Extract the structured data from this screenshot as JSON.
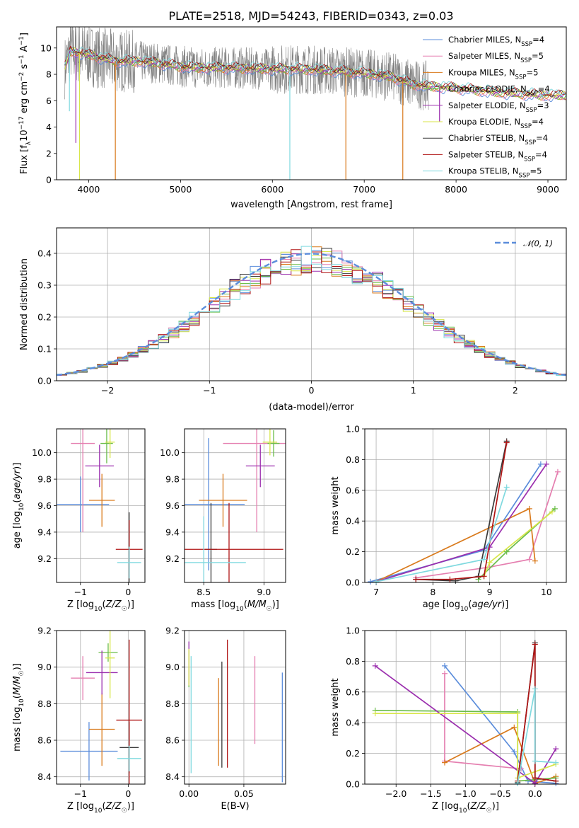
{
  "figure_title": "PLATE=2518, MJD=54243, FIBERID=0343, z=0.03",
  "colors": {
    "Chabrier MILES": "#5b8ddb",
    "Salpeter MILES": "#e57fb0",
    "Kroupa MILES": "#d97a1c",
    "Chabrier ELODIE": "#6bbd4a",
    "Salpeter ELODIE": "#9b2fae",
    "Kroupa ELODIE": "#d8e64a",
    "Chabrier STELIB": "#3a3a3a",
    "Salpeter STELIB": "#b01515",
    "Kroupa STELIB": "#7fd9df",
    "data": "#808080"
  },
  "chart_data": [
    {
      "id": "spectrum",
      "type": "line",
      "xlabel": "wavelength [Angstrom, rest frame]",
      "ylabel": "Flux [f_λ10^{-17} erg cm^{-2} s^{-1} A^{-1}]",
      "ylabel_parts": {
        "main": "Flux [f",
        "sub1": "λ",
        "mid": "10",
        "sup1": "−17",
        "mid2": " erg cm",
        "sup2": "−2",
        "mid3": " s",
        "sup3": "−1",
        "mid4": " A",
        "sup4": "−1",
        "end": "]"
      },
      "xlim": [
        3650,
        9200
      ],
      "ylim": [
        0,
        11.6
      ],
      "xticks": [
        4000,
        5000,
        6000,
        7000,
        8000,
        9000
      ],
      "yticks": [
        0,
        2,
        4,
        6,
        8,
        10
      ],
      "grid": false,
      "legend_position": "top-right",
      "data_range": [
        3740,
        7700
      ],
      "continuum": [
        [
          3740,
          8.5
        ],
        [
          3800,
          9.8
        ],
        [
          3900,
          9.6
        ],
        [
          4000,
          9.5
        ],
        [
          4100,
          9.3
        ],
        [
          4300,
          9.0
        ],
        [
          4500,
          9.0
        ],
        [
          4700,
          8.9
        ],
        [
          5000,
          8.6
        ],
        [
          5200,
          8.5
        ],
        [
          5500,
          8.5
        ],
        [
          5800,
          8.45
        ],
        [
          6000,
          8.4
        ],
        [
          6300,
          8.4
        ],
        [
          6600,
          8.3
        ],
        [
          7000,
          8.1
        ],
        [
          7300,
          7.8
        ],
        [
          7500,
          7.3
        ],
        [
          7700,
          7.1
        ],
        [
          8000,
          6.95
        ],
        [
          8500,
          6.6
        ],
        [
          9000,
          6.4
        ]
      ],
      "legend": [
        {
          "name": "Chabrier MILES",
          "label": "Chabrier MILES, N",
          "sub": "SSP",
          "n": "=4"
        },
        {
          "name": "Salpeter MILES",
          "label": "Salpeter MILES, N",
          "sub": "SSP",
          "n": "=5"
        },
        {
          "name": "Kroupa MILES",
          "label": "Kroupa MILES, N",
          "sub": "SSP",
          "n": "=5"
        },
        {
          "name": "Chabrier ELODIE",
          "label": "Chabrier ELODIE, N",
          "sub": "SSP",
          "n": "=4"
        },
        {
          "name": "Salpeter ELODIE",
          "label": "Salpeter ELODIE, N",
          "sub": "SSP",
          "n": "=3"
        },
        {
          "name": "Kroupa ELODIE",
          "label": "Kroupa ELODIE, N",
          "sub": "SSP",
          "n": "=4"
        },
        {
          "name": "Chabrier STELIB",
          "label": "Chabrier STELIB, N",
          "sub": "SSP",
          "n": "=4"
        },
        {
          "name": "Salpeter STELIB",
          "label": "Salpeter STELIB, N",
          "sub": "SSP",
          "n": "=4"
        },
        {
          "name": "Kroupa STELIB",
          "label": "Kroupa STELIB, N",
          "sub": "SSP",
          "n": "=5"
        }
      ],
      "dips": [
        {
          "name": "Kroupa MILES",
          "x": 4290,
          "y": 0
        },
        {
          "name": "Kroupa MILES",
          "x": 6800,
          "y": 0
        },
        {
          "name": "Kroupa MILES",
          "x": 7420,
          "y": 0
        },
        {
          "name": "Kroupa ELODIE",
          "x": 3900,
          "y": 0
        },
        {
          "name": "Kroupa STELIB",
          "x": 6190,
          "y": 0
        },
        {
          "name": "Salpeter ELODIE",
          "x": 3860,
          "y": 2.8
        },
        {
          "name": "Kroupa STELIB",
          "x": 3790,
          "y": 5.2
        },
        {
          "name": "Salpeter ELODIE",
          "x": 7820,
          "y": 4.4
        }
      ]
    },
    {
      "id": "residuals",
      "type": "histogram",
      "xlabel": "(data-model)/error",
      "ylabel": "Normed distribution",
      "xlim": [
        -2.5,
        2.5
      ],
      "ylim": [
        0,
        0.48
      ],
      "xticks": [
        -2,
        -1,
        0,
        1,
        2
      ],
      "yticks": [
        0.0,
        0.1,
        0.2,
        0.3,
        0.4
      ],
      "grid": true,
      "bin_width": 0.1,
      "reference": {
        "name": "N(0,1)",
        "label": "𝒩(0, 1)",
        "color": "#5b8ddb",
        "style": "dashed",
        "mean": 0,
        "sigma": 1
      },
      "legend_position": "top-right"
    },
    {
      "id": "age-vs-Z",
      "type": "scatter",
      "xlabel": "Z [log10(Z/Z☉)]",
      "ylabel": "age [log10(age/yr)]",
      "xlim": [
        -1.5,
        0.35
      ],
      "ylim": [
        9.02,
        10.18
      ],
      "xticks": [
        -1,
        0
      ],
      "yticks": [
        9.2,
        9.4,
        9.6,
        9.8,
        10.0
      ],
      "grid": true,
      "points": [
        {
          "name": "Chabrier MILES",
          "x": -1.0,
          "xerr": 0.6,
          "y": 9.61,
          "yerr": 0.21
        },
        {
          "name": "Salpeter MILES",
          "x": -0.95,
          "xerr": 0.25,
          "y": 10.07,
          "yerr": 0.67
        },
        {
          "name": "Kroupa MILES",
          "x": -0.55,
          "xerr": 0.27,
          "y": 9.64,
          "yerr": 0.2
        },
        {
          "name": "Chabrier ELODIE",
          "x": -0.45,
          "xerr": 0.13,
          "y": 10.07,
          "yerr": 0.15
        },
        {
          "name": "Salpeter ELODIE",
          "x": -0.6,
          "xerr": 0.3,
          "y": 9.9,
          "yerr": 0.16
        },
        {
          "name": "Kroupa ELODIE",
          "x": -0.38,
          "xerr": 0.1,
          "y": 10.08,
          "yerr": 0.12
        },
        {
          "name": "Chabrier STELIB",
          "x": 0.02,
          "xerr": 0.01,
          "y": 9.27,
          "yerr": 0.28
        },
        {
          "name": "Salpeter STELIB",
          "x": 0.02,
          "xerr": 0.28,
          "y": 9.27,
          "yerr": 0.22
        },
        {
          "name": "Kroupa STELIB",
          "x": 0.02,
          "xerr": 0.25,
          "y": 9.17,
          "yerr": 0.12
        }
      ]
    },
    {
      "id": "age-vs-mass",
      "type": "scatter",
      "xlabel": "mass [log10(M/M☉)]",
      "ylabel": "",
      "xlim": [
        8.34,
        9.18
      ],
      "ylim": [
        9.02,
        10.18
      ],
      "xticks": [
        8.5,
        9.0
      ],
      "yticks": [
        9.2,
        9.4,
        9.6,
        9.8,
        10.0
      ],
      "grid": true,
      "points": [
        {
          "name": "Chabrier MILES",
          "x": 8.54,
          "xerr": 0.3,
          "y": 9.61,
          "yerr": 0.5
        },
        {
          "name": "Salpeter MILES",
          "x": 8.94,
          "xerr": 0.28,
          "y": 10.07,
          "yerr": 0.67
        },
        {
          "name": "Kroupa MILES",
          "x": 8.66,
          "xerr": 0.2,
          "y": 9.64,
          "yerr": 0.2
        },
        {
          "name": "Chabrier ELODIE",
          "x": 9.08,
          "xerr": 0.05,
          "y": 10.07,
          "yerr": 0.1
        },
        {
          "name": "Salpeter ELODIE",
          "x": 8.97,
          "xerr": 0.12,
          "y": 9.9,
          "yerr": 0.16
        },
        {
          "name": "Kroupa ELODIE",
          "x": 9.05,
          "xerr": 0.06,
          "y": 10.08,
          "yerr": 0.1
        },
        {
          "name": "Chabrier STELIB",
          "x": 8.56,
          "xerr": 0.05,
          "y": 9.27,
          "yerr": 0.35
        },
        {
          "name": "Salpeter STELIB",
          "x": 8.71,
          "xerr": 0.45,
          "y": 9.27,
          "yerr": 0.35
        },
        {
          "name": "Kroupa STELIB",
          "x": 8.5,
          "xerr": 0.35,
          "y": 9.17,
          "yerr": 0.35
        }
      ]
    },
    {
      "id": "massweight-vs-age",
      "type": "line",
      "xlabel": "age [log10(age/yr)]",
      "ylabel": "mass weight",
      "xlim": [
        6.8,
        10.35
      ],
      "ylim": [
        0,
        1
      ],
      "xticks": [
        7,
        8,
        9,
        10
      ],
      "yticks": [
        0.0,
        0.2,
        0.4,
        0.6,
        0.8,
        1.0
      ],
      "grid": true,
      "series": [
        {
          "name": "Chabrier MILES",
          "x": [
            6.9,
            8.9,
            9.9
          ],
          "y": [
            0.005,
            0.21,
            0.77
          ]
        },
        {
          "name": "Salpeter MILES",
          "x": [
            7.7,
            9.0,
            9.7,
            10.2
          ],
          "y": [
            0.03,
            0.1,
            0.15,
            0.72
          ]
        },
        {
          "name": "Kroupa MILES",
          "x": [
            7.0,
            9.7,
            9.8
          ],
          "y": [
            0.005,
            0.48,
            0.14
          ]
        },
        {
          "name": "Chabrier ELODIE",
          "x": [
            8.8,
            9.3,
            10.15
          ],
          "y": [
            0.02,
            0.2,
            0.48
          ]
        },
        {
          "name": "Salpeter ELODIE",
          "x": [
            7.0,
            9.0,
            10.0
          ],
          "y": [
            0.005,
            0.23,
            0.77
          ]
        },
        {
          "name": "Kroupa ELODIE",
          "x": [
            8.9,
            9.0,
            10.1
          ],
          "y": [
            0.04,
            0.13,
            0.46
          ]
        },
        {
          "name": "Chabrier STELIB",
          "x": [
            7.7,
            8.4,
            8.8,
            9.3
          ],
          "y": [
            0.02,
            0.01,
            0.04,
            0.92
          ]
        },
        {
          "name": "Salpeter STELIB",
          "x": [
            7.7,
            8.3,
            8.9,
            9.3
          ],
          "y": [
            0.02,
            0.02,
            0.04,
            0.91
          ]
        },
        {
          "name": "Kroupa STELIB",
          "x": [
            7.0,
            8.9,
            9.3
          ],
          "y": [
            0.005,
            0.15,
            0.62
          ]
        }
      ]
    },
    {
      "id": "mass-vs-Z",
      "type": "scatter",
      "xlabel": "Z [log10(Z/Z☉)]",
      "ylabel": "mass [log10(M/M☉)]",
      "xlim": [
        -1.5,
        0.35
      ],
      "ylim": [
        8.36,
        9.2
      ],
      "xticks": [
        -1,
        0
      ],
      "yticks": [
        8.4,
        8.6,
        8.8,
        9.0,
        9.2
      ],
      "grid": true,
      "points": [
        {
          "name": "Chabrier MILES",
          "x": -0.82,
          "xerr": 0.6,
          "y": 8.54,
          "yerr": 0.16
        },
        {
          "name": "Salpeter MILES",
          "x": -0.95,
          "xerr": 0.25,
          "y": 8.94,
          "yerr": 0.12
        },
        {
          "name": "Kroupa MILES",
          "x": -0.55,
          "xerr": 0.27,
          "y": 8.66,
          "yerr": 0.2
        },
        {
          "name": "Chabrier ELODIE",
          "x": -0.42,
          "xerr": 0.2,
          "y": 9.08,
          "yerr": 0.05
        },
        {
          "name": "Salpeter ELODIE",
          "x": -0.55,
          "xerr": 0.33,
          "y": 8.97,
          "yerr": 0.12
        },
        {
          "name": "Kroupa ELODIE",
          "x": -0.38,
          "xerr": 0.1,
          "y": 9.05,
          "yerr": 0.22
        },
        {
          "name": "Chabrier STELIB",
          "x": 0.02,
          "xerr": 0.2,
          "y": 8.56,
          "yerr": 0.14
        },
        {
          "name": "Salpeter STELIB",
          "x": 0.02,
          "xerr": 0.27,
          "y": 8.71,
          "yerr": 0.44
        },
        {
          "name": "Kroupa STELIB",
          "x": 0.02,
          "xerr": 0.25,
          "y": 8.5,
          "yerr": 0.07
        }
      ]
    },
    {
      "id": "mass-vs-EBV",
      "type": "scatter",
      "xlabel": "E(B-V)",
      "ylabel": "",
      "xlim": [
        -0.004,
        0.088
      ],
      "ylim": [
        8.36,
        9.2
      ],
      "xticks": [
        0.0,
        0.05
      ],
      "yticks": [
        8.4,
        8.6,
        8.8,
        9.0,
        9.2
      ],
      "grid": true,
      "points": [
        {
          "name": "Chabrier MILES",
          "x": 0.085,
          "y": 8.67,
          "yerr": 0.3
        },
        {
          "name": "Salpeter MILES",
          "x": 0.06,
          "y": 8.82,
          "yerr": 0.24
        },
        {
          "name": "Kroupa MILES",
          "x": 0.027,
          "y": 8.7,
          "yerr": 0.24
        },
        {
          "name": "Chabrier ELODIE",
          "x": 0.0,
          "y": 8.99,
          "yerr": 0.1
        },
        {
          "name": "Salpeter ELODIE",
          "x": 0.0,
          "y": 9.02,
          "yerr": 0.12
        },
        {
          "name": "Kroupa ELODIE",
          "x": 0.0,
          "y": 9.0,
          "yerr": 0.1
        },
        {
          "name": "Chabrier STELIB",
          "x": 0.03,
          "y": 8.74,
          "yerr": 0.29
        },
        {
          "name": "Salpeter STELIB",
          "x": 0.035,
          "y": 8.8,
          "yerr": 0.35
        },
        {
          "name": "Kroupa STELIB",
          "x": 0.002,
          "y": 8.74,
          "yerr": 0.32
        }
      ]
    },
    {
      "id": "massweight-vs-Z",
      "type": "line",
      "xlabel": "Z [log10(Z/Z☉)]",
      "ylabel": "mass weight",
      "xlim": [
        -2.45,
        0.45
      ],
      "ylim": [
        0,
        1
      ],
      "xticks": [
        -2.0,
        -1.5,
        -1.0,
        -0.5,
        0.0
      ],
      "yticks": [
        0.0,
        0.2,
        0.4,
        0.6,
        0.8,
        1.0
      ],
      "grid": true,
      "series": [
        {
          "name": "Chabrier MILES",
          "x": [
            -1.3,
            -0.3,
            -0.1,
            0.3
          ],
          "y": [
            0.77,
            0.21,
            0.02,
            0.005
          ]
        },
        {
          "name": "Salpeter MILES",
          "x": [
            -1.3,
            -1.3,
            -1.3,
            -0.2
          ],
          "y": [
            0.72,
            0.15,
            0.15,
            0.1
          ]
        },
        {
          "name": "Kroupa MILES",
          "x": [
            -1.3,
            -0.3,
            0.0,
            0.3
          ],
          "y": [
            0.14,
            0.37,
            0.005,
            0.05
          ]
        },
        {
          "name": "Chabrier ELODIE",
          "x": [
            -2.3,
            -0.25,
            -0.25,
            0.3
          ],
          "y": [
            0.48,
            0.47,
            0.02,
            0.04
          ]
        },
        {
          "name": "Salpeter ELODIE",
          "x": [
            -2.3,
            0.0,
            0.3
          ],
          "y": [
            0.77,
            0.005,
            0.23
          ]
        },
        {
          "name": "Kroupa ELODIE",
          "x": [
            -2.3,
            -0.25,
            -0.25,
            0.3
          ],
          "y": [
            0.46,
            0.46,
            0.04,
            0.13
          ]
        },
        {
          "name": "Chabrier STELIB",
          "x": [
            -0.25,
            0.0,
            0.0,
            0.3
          ],
          "y": [
            0.01,
            0.92,
            0.04,
            0.02
          ]
        },
        {
          "name": "Salpeter STELIB",
          "x": [
            -0.25,
            0.0,
            0.0,
            0.3
          ],
          "y": [
            0.02,
            0.91,
            0.04,
            0.02
          ]
        },
        {
          "name": "Kroupa STELIB",
          "x": [
            -0.25,
            0.0,
            0.0,
            0.3
          ],
          "y": [
            0.005,
            0.62,
            0.15,
            0.14
          ]
        }
      ]
    }
  ]
}
